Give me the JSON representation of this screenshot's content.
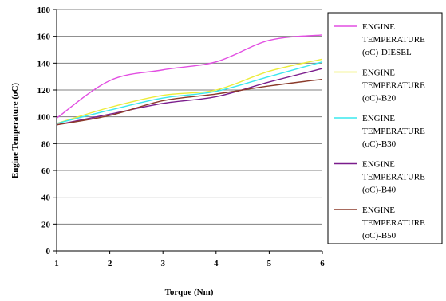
{
  "chart_data": {
    "type": "line",
    "xlabel": "Torque (Nm)",
    "ylabel": "Engine Temperature (oC)",
    "x": [
      1,
      2,
      3,
      4,
      5,
      6
    ],
    "xlim": [
      1,
      6
    ],
    "ylim": [
      0,
      180
    ],
    "yticks": [
      0,
      20,
      40,
      60,
      80,
      100,
      120,
      140,
      160,
      180
    ],
    "xticks": [
      1,
      2,
      3,
      4,
      5,
      6
    ],
    "grid": true,
    "legend_position": "right",
    "series": [
      {
        "name": "ENGINE TEMPERATURE (oC)-DIESEL",
        "legend_lines": [
          "ENGINE",
          "TEMPERATURE",
          "(oC)-DIESEL"
        ],
        "color": "#e24fe2",
        "values": [
          99,
          127,
          135,
          141,
          157,
          161
        ]
      },
      {
        "name": "ENGINE TEMPERATURE (oC)-B20",
        "legend_lines": [
          "ENGINE",
          "TEMPERATURE",
          "(oC)-B20"
        ],
        "color": "#ecec3a",
        "values": [
          95,
          107,
          116,
          120,
          134,
          143
        ]
      },
      {
        "name": "ENGINE TEMPERATURE (oC)-B30",
        "legend_lines": [
          "ENGINE",
          "TEMPERATURE",
          "(oC)-B30"
        ],
        "color": "#3ae8ee",
        "values": [
          95,
          105,
          114,
          119,
          130,
          141
        ]
      },
      {
        "name": "ENGINE TEMPERATURE (oC)-B40",
        "legend_lines": [
          "ENGINE",
          "TEMPERATURE",
          "(oC)-B40"
        ],
        "color": "#7a1c8c",
        "values": [
          94,
          102,
          110,
          115,
          126,
          136
        ]
      },
      {
        "name": "ENGINE TEMPERATURE (oC)-B50",
        "legend_lines": [
          "ENGINE",
          "TEMPERATURE",
          "(oC)-B50"
        ],
        "color": "#8b3a2a",
        "values": [
          94,
          101,
          112,
          117,
          123,
          128
        ]
      }
    ]
  }
}
